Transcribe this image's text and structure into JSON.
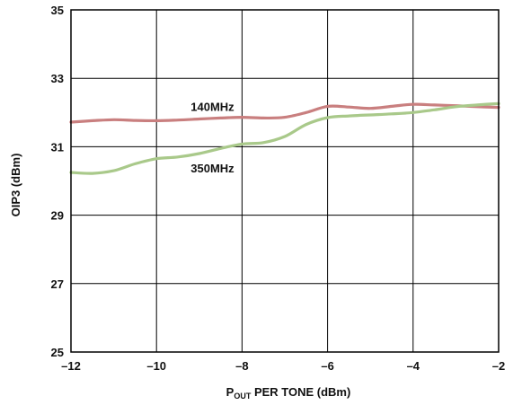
{
  "chart_data": {
    "type": "line",
    "xlabel_main": "P",
    "xlabel_sub": "OUT",
    "xlabel_rest": " PER  TONE (dBm)",
    "ylabel": "OIP3 (dBm)",
    "xlim": [
      -12,
      -2
    ],
    "ylim": [
      25,
      35
    ],
    "x_ticks": [
      -12,
      -10,
      -8,
      -6,
      -4,
      -2
    ],
    "x_tick_labels": [
      "–12",
      "–10",
      "–8",
      "–6",
      "–4",
      "–2"
    ],
    "y_ticks": [
      25,
      27,
      29,
      31,
      33,
      35
    ],
    "y_tick_labels": [
      "25",
      "27",
      "29",
      "31",
      "33",
      "35"
    ],
    "grid": true,
    "series": [
      {
        "name": "140MHz",
        "color": "#c97f7f",
        "x": [
          -12,
          -11.5,
          -11,
          -10.5,
          -10,
          -9.5,
          -9,
          -8.5,
          -8,
          -7.5,
          -7,
          -6.5,
          -6,
          -5.5,
          -5,
          -4.5,
          -4,
          -3.5,
          -3,
          -2.5,
          -2
        ],
        "y": [
          31.72,
          31.76,
          31.79,
          31.77,
          31.76,
          31.78,
          31.81,
          31.84,
          31.86,
          31.84,
          31.86,
          32.0,
          32.18,
          32.16,
          32.12,
          32.18,
          32.24,
          32.22,
          32.2,
          32.17,
          32.15
        ]
      },
      {
        "name": "350MHz",
        "color": "#a9c98a",
        "x": [
          -12,
          -11.5,
          -11,
          -10.5,
          -10,
          -9.5,
          -9,
          -8.5,
          -8,
          -7.5,
          -7,
          -6.5,
          -6,
          -5.5,
          -5,
          -4.5,
          -4,
          -3.5,
          -3,
          -2.5,
          -2
        ],
        "y": [
          30.25,
          30.22,
          30.3,
          30.5,
          30.65,
          30.7,
          30.8,
          30.95,
          31.08,
          31.12,
          31.3,
          31.65,
          31.85,
          31.9,
          31.93,
          31.96,
          32.0,
          32.08,
          32.17,
          32.22,
          32.26
        ]
      }
    ],
    "annotations": [
      {
        "text": "140MHz",
        "x": -9.2,
        "y": 32.05
      },
      {
        "text": "350MHz",
        "x": -9.2,
        "y": 30.25
      }
    ]
  }
}
